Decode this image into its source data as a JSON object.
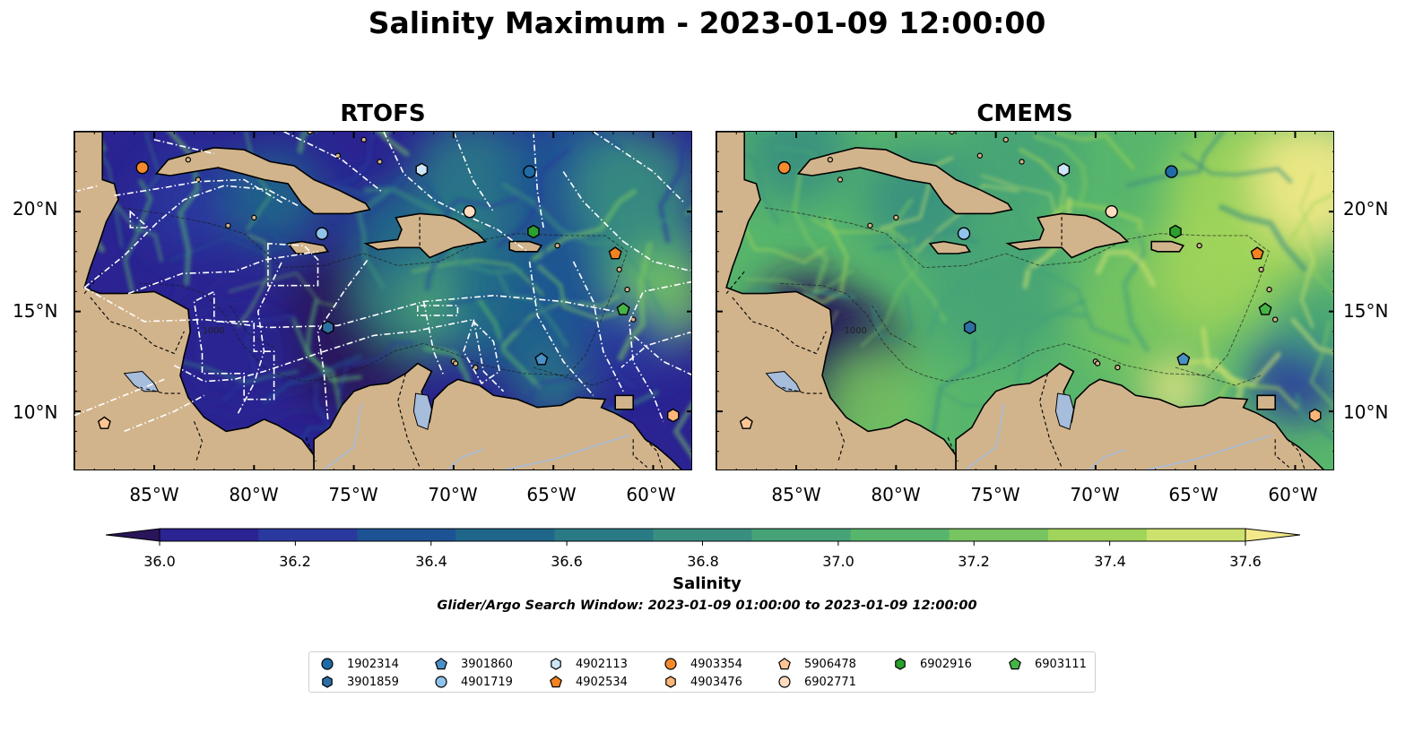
{
  "title": "Salinity Maximum - 2023-01-09 12:00:00",
  "panels": [
    {
      "title": "RTOFS",
      "model": "rtofs"
    },
    {
      "title": "CMEMS",
      "model": "cmems"
    }
  ],
  "x_ticks": [
    "85°W",
    "80°W",
    "75°W",
    "70°W",
    "65°W",
    "60°W"
  ],
  "y_ticks": [
    "20°N",
    "15°N",
    "10°N"
  ],
  "map_extent": {
    "lon": [
      -89,
      -58
    ],
    "lat": [
      7,
      24
    ]
  },
  "colorbar": {
    "label": "Salinity",
    "ticks": [
      "36.0",
      "36.2",
      "36.4",
      "36.6",
      "36.8",
      "37.0",
      "37.2",
      "37.4",
      "37.6"
    ],
    "range": [
      36.0,
      37.6
    ],
    "extend": "both",
    "colormap": [
      "#29155a",
      "#2a2391",
      "#2a399d",
      "#1d5394",
      "#1f678a",
      "#2a7a86",
      "#388f80",
      "#45a377",
      "#58b66c",
      "#77c460",
      "#a0d45a",
      "#cde26e",
      "#f3e98a"
    ]
  },
  "search_window": "Glider/Argo Search Window: 2023-01-09 01:00:00 to 2023-01-09 12:00:00",
  "contour_label": "1000",
  "colors": {
    "land": "#d2b48c",
    "lakes": "#a6bddb",
    "background": "#ffffff"
  },
  "floats": [
    {
      "id": "1902314",
      "marker": "circle",
      "color": "#1f6ba6",
      "lon": -66.2,
      "lat": 22.0
    },
    {
      "id": "3901859",
      "marker": "hexagon",
      "color": "#2e6fa3",
      "lon": -76.3,
      "lat": 14.2
    },
    {
      "id": "3901860",
      "marker": "pentagon",
      "color": "#4a90c8",
      "lon": -65.6,
      "lat": 12.6
    },
    {
      "id": "4901719",
      "marker": "circle",
      "color": "#8fc3ea",
      "lon": -76.6,
      "lat": 18.9
    },
    {
      "id": "4902113",
      "marker": "hexagon",
      "color": "#cde6f8",
      "lon": -71.6,
      "lat": 22.1
    },
    {
      "id": "4902534",
      "marker": "pentagon",
      "color": "#f58220",
      "lon": -61.9,
      "lat": 17.9
    },
    {
      "id": "4903354",
      "marker": "circle",
      "color": "#f58a2c",
      "lon": -85.6,
      "lat": 22.2
    },
    {
      "id": "4903476",
      "marker": "hexagon",
      "color": "#fdb67a",
      "lon": -59.0,
      "lat": 9.8
    },
    {
      "id": "5906478",
      "marker": "pentagon",
      "color": "#fdc694",
      "lon": -87.5,
      "lat": 9.4
    },
    {
      "id": "6902771",
      "marker": "circle",
      "color": "#fedcc0",
      "lon": -69.2,
      "lat": 20.0
    },
    {
      "id": "6902916",
      "marker": "hexagon",
      "color": "#2ca02c",
      "lon": -66.0,
      "lat": 19.0
    },
    {
      "id": "6903111",
      "marker": "pentagon",
      "color": "#45b545",
      "lon": -61.5,
      "lat": 15.1
    }
  ]
}
